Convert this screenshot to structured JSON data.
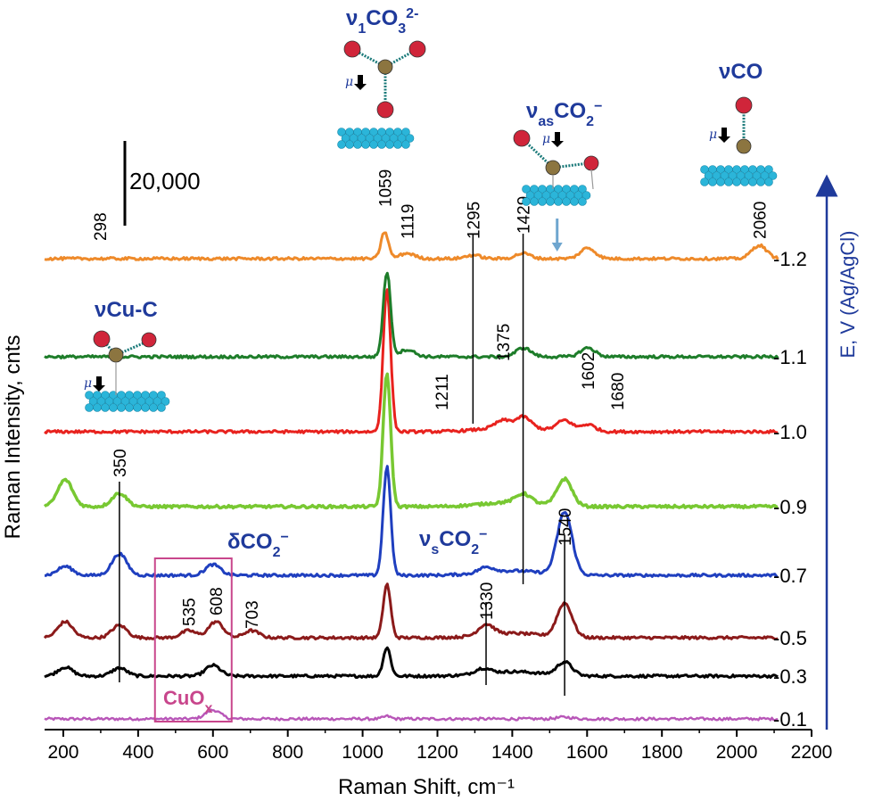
{
  "chart_data": {
    "type": "line",
    "xlabel": "Raman Shift, cm⁻¹",
    "ylabel": "Raman Intensity, cnts",
    "right_axis_label": "E, V (Ag/AgCl)",
    "xlim": [
      150,
      2200
    ],
    "xticks": [
      200,
      400,
      600,
      800,
      1000,
      1200,
      1400,
      1600,
      1800,
      2000,
      2200
    ],
    "scale_bar_label": "20,000",
    "legend": "none",
    "grid": false,
    "series": [
      {
        "potential": "-0.1",
        "color": "#b856b8",
        "peaks": [
          [
            600,
            10
          ],
          [
            1065,
            3
          ],
          [
            1540,
            2
          ]
        ]
      },
      {
        "potential": "-0.3",
        "color": "#000000",
        "peaks": [
          [
            205,
            10
          ],
          [
            350,
            9
          ],
          [
            600,
            12
          ],
          [
            1065,
            32
          ],
          [
            1320,
            6
          ],
          [
            1540,
            15
          ]
        ]
      },
      {
        "potential": "-0.5",
        "color": "#8b1a1a",
        "peaks": [
          [
            205,
            18
          ],
          [
            350,
            14
          ],
          [
            535,
            8
          ],
          [
            608,
            18
          ],
          [
            703,
            8
          ],
          [
            1065,
            60
          ],
          [
            1330,
            12
          ],
          [
            1540,
            38
          ]
        ]
      },
      {
        "potential": "-0.7",
        "color": "#1f3fbf",
        "peaks": [
          [
            205,
            10
          ],
          [
            350,
            24
          ],
          [
            600,
            12
          ],
          [
            1065,
            122
          ],
          [
            1330,
            6
          ],
          [
            1540,
            70
          ]
        ]
      },
      {
        "potential": "-0.9",
        "color": "#78c832",
        "peaks": [
          [
            205,
            30
          ],
          [
            350,
            15
          ],
          [
            1065,
            150
          ],
          [
            1430,
            10
          ],
          [
            1540,
            30
          ]
        ]
      },
      {
        "potential": "-1.0",
        "color": "#e8221e",
        "peaks": [
          [
            1065,
            160
          ],
          [
            1375,
            8
          ],
          [
            1430,
            12
          ],
          [
            1540,
            12
          ],
          [
            1602,
            8
          ]
        ]
      },
      {
        "potential": "-1.1",
        "color": "#1e7d2a",
        "peaks": [
          [
            1065,
            95
          ],
          [
            1119,
            8
          ],
          [
            1430,
            10
          ],
          [
            1602,
            10
          ]
        ]
      },
      {
        "potential": "-1.2",
        "color": "#ee8a2a",
        "peaks": [
          [
            1059,
            30
          ],
          [
            1119,
            6
          ],
          [
            1295,
            4
          ],
          [
            1429,
            6
          ],
          [
            1602,
            12
          ],
          [
            2060,
            15
          ]
        ]
      }
    ],
    "peak_labels": [
      "298",
      "350",
      "535",
      "608",
      "703",
      "1059",
      "1119",
      "1211",
      "1295",
      "1330",
      "1375",
      "1429",
      "1540",
      "1602",
      "1680",
      "2060"
    ],
    "band_labels": {
      "v1co3": {
        "main": "ν",
        "sub": "1",
        "mid": "CO",
        "sub2": "3",
        "sup": "2-"
      },
      "vco": "νCO",
      "vasco2": {
        "main": "ν",
        "sub": "as",
        "mid": "CO",
        "sub2": "2",
        "sup": "−"
      },
      "vcuc": "νCu-C",
      "dco2": {
        "main": "δCO",
        "sub2": "2",
        "sup": "−"
      },
      "vsco2": {
        "main": "ν",
        "sub": "s",
        "mid": "CO",
        "sub2": "2",
        "sup": "−"
      },
      "cuox": {
        "main": "CuO",
        "sub": "x"
      }
    },
    "dipole_symbol": "μ"
  }
}
